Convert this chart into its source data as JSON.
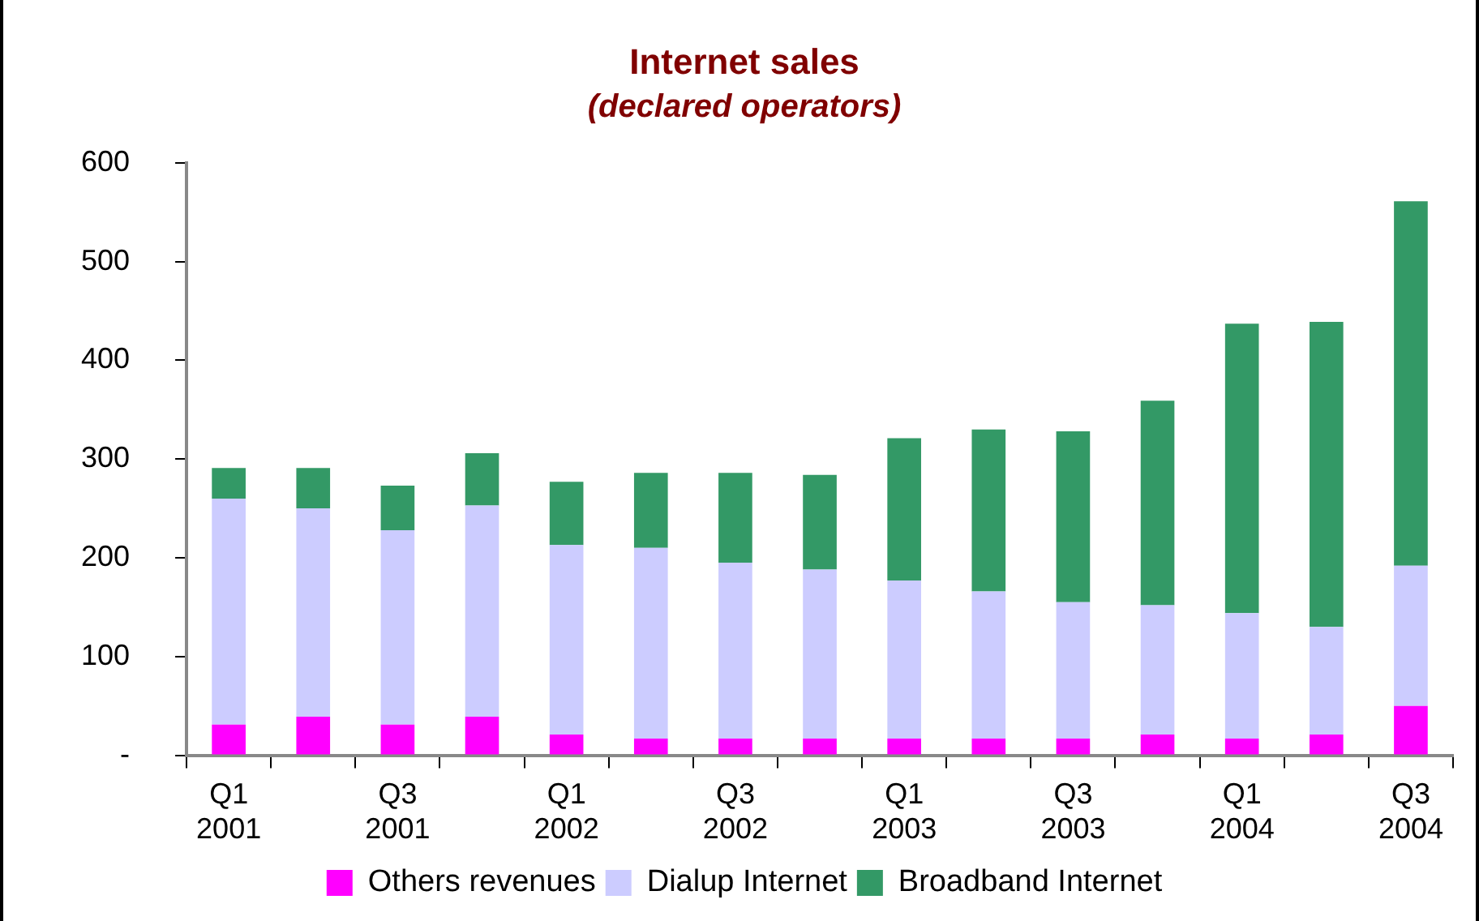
{
  "chart_data": {
    "type": "bar",
    "title": "Internet sales",
    "subtitle": "(declared operators)",
    "categories": [
      "Q1 2001",
      null,
      "Q3 2001",
      null,
      "Q1 2002",
      null,
      "Q3 2002",
      null,
      "Q1 2003",
      null,
      "Q3 2003",
      null,
      "Q1 2004",
      null,
      "Q3 2004"
    ],
    "stacked": true,
    "ylim": [
      0,
      600
    ],
    "yticks": [
      {
        "value": 0,
        "label": "-"
      },
      100,
      200,
      300,
      400,
      500,
      600
    ],
    "grid": false,
    "legend": "bottom",
    "series": [
      {
        "name": "Others revenues",
        "color": "#ff00ff",
        "values": [
          31,
          39,
          31,
          39,
          21,
          17,
          17,
          17,
          17,
          17,
          17,
          21,
          17,
          21,
          50
        ]
      },
      {
        "name": "Dialup Internet",
        "color": "#ccccff",
        "values": [
          229,
          211,
          197,
          214,
          192,
          193,
          178,
          171,
          160,
          149,
          138,
          131,
          127,
          109,
          142
        ]
      },
      {
        "name": "Broadband Internet",
        "color": "#339966",
        "values": [
          31,
          41,
          45,
          53,
          64,
          76,
          91,
          96,
          144,
          164,
          173,
          207,
          293,
          309,
          369
        ]
      }
    ]
  }
}
